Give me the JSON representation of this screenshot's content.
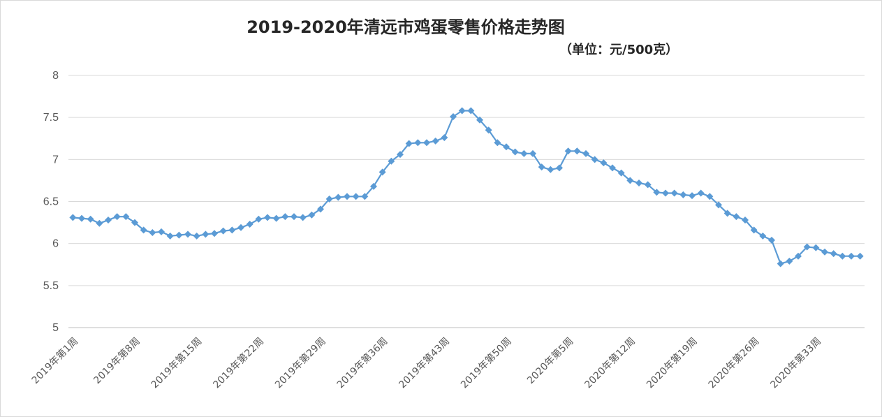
{
  "chart_data": {
    "type": "line",
    "title": "2019-2020年清远市鸡蛋零售价格走势图",
    "subtitle": "（单位：元/500克）",
    "ylim": [
      5,
      8
    ],
    "yticks": [
      "5",
      "5.5",
      "6",
      "6.5",
      "7",
      "7.5",
      "8"
    ],
    "grid": true,
    "legend": "none",
    "color": "#5B9BD5",
    "x_tick_labels": [
      "2019年第1周",
      "2019年第8周",
      "2019年第15周",
      "2019年第22周",
      "2019年第29周",
      "2019年第36周",
      "2019年第43周",
      "2019年第50周",
      "2020年第5周",
      "2020年第12周",
      "2020年第19周",
      "2020年第26周",
      "2020年第33周"
    ],
    "series": [
      {
        "values": [
          6.31,
          6.3,
          6.29,
          6.24,
          6.28,
          6.32,
          6.32,
          6.25,
          6.16,
          6.13,
          6.14,
          6.09,
          6.1,
          6.11,
          6.09,
          6.11,
          6.12,
          6.15,
          6.16,
          6.19,
          6.23,
          6.29,
          6.31,
          6.3,
          6.32,
          6.32,
          6.31,
          6.34,
          6.41,
          6.53,
          6.55,
          6.56,
          6.56,
          6.56,
          6.68,
          6.85,
          6.98,
          7.06,
          7.19,
          7.2,
          7.2,
          7.22,
          7.26,
          7.51,
          7.58,
          7.58,
          7.47,
          7.35,
          7.2,
          7.15,
          7.09,
          7.07,
          7.07,
          6.91,
          6.88,
          6.9,
          7.1,
          7.1,
          7.07,
          7.0,
          6.96,
          6.9,
          6.84,
          6.75,
          6.72,
          6.7,
          6.61,
          6.6,
          6.6,
          6.58,
          6.57,
          6.6,
          6.56,
          6.46,
          6.36,
          6.32,
          6.28,
          6.16,
          6.09,
          6.04,
          5.76,
          5.79,
          5.85,
          5.96,
          5.95,
          5.9,
          5.88,
          5.85,
          5.85,
          5.85
        ]
      }
    ]
  }
}
